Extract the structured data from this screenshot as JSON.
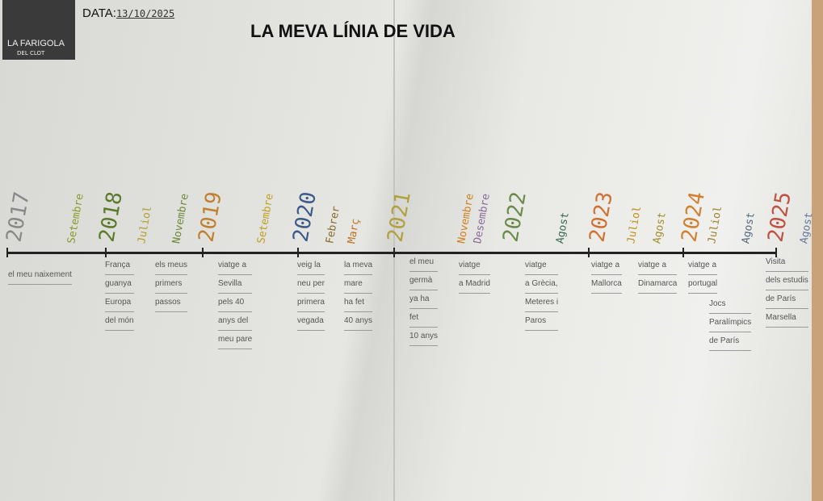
{
  "header": {
    "logo_text": "LA FARIGOLA",
    "logo_sub": "DEL CLOT",
    "date_label": "DATA:",
    "date_value": "13/10/2025",
    "title": "LA MEVA  LÍNIA DE VIDA"
  },
  "labels": [
    {
      "text": "2017",
      "kind": "yr",
      "color": "#888"
    },
    {
      "text": "Setembre",
      "kind": "mo",
      "color": "#8a9a2a"
    },
    {
      "text": "2018",
      "kind": "yr",
      "color": "#5a7a2a"
    },
    {
      "text": "Juliol",
      "kind": "mo",
      "color": "#b0a030"
    },
    {
      "text": "Novembre",
      "kind": "mo",
      "color": "#6a8a3a"
    },
    {
      "text": "2019",
      "kind": "yr",
      "color": "#c08030"
    },
    {
      "text": "Setembre",
      "kind": "mo",
      "color": "#c0a020"
    },
    {
      "text": "2020",
      "kind": "yr",
      "color": "#3a5a8a"
    },
    {
      "text": "Febrer",
      "kind": "mo",
      "color": "#8a6a2a"
    },
    {
      "text": "Març",
      "kind": "mo",
      "color": "#c07020"
    },
    {
      "text": "2021",
      "kind": "yr",
      "color": "#b0a040"
    },
    {
      "text": "Novembre",
      "kind": "mo",
      "color": "#d08020"
    },
    {
      "text": "Desembre",
      "kind": "mo",
      "color": "#8a6a9a"
    },
    {
      "text": "2022",
      "kind": "yr",
      "color": "#6a8a4a"
    },
    {
      "text": "Agost",
      "kind": "mo",
      "color": "#3a6a5a"
    },
    {
      "text": "2023",
      "kind": "yr",
      "color": "#d07030"
    },
    {
      "text": "Juliol",
      "kind": "mo",
      "color": "#c09020"
    },
    {
      "text": "Agost",
      "kind": "mo",
      "color": "#a09030"
    },
    {
      "text": "2024",
      "kind": "yr",
      "color": "#d08030"
    },
    {
      "text": "Juliol",
      "kind": "mo",
      "color": "#a08030"
    },
    {
      "text": "Agost",
      "kind": "mo",
      "color": "#5a6a7a"
    },
    {
      "text": "2025",
      "kind": "yr",
      "color": "#c05040"
    },
    {
      "text": "Agost",
      "kind": "mo",
      "color": "#6a7a9a"
    }
  ],
  "events": [
    [
      "el meu naixement"
    ],
    [
      "França",
      "guanya",
      "Europa",
      "del món"
    ],
    [
      "els meus",
      "primers",
      "passos"
    ],
    [
      "viatge a",
      "Sevilla",
      "pels 40",
      "anys del",
      "meu pare"
    ],
    [
      "veig la",
      "neu per",
      "primera",
      "vegada"
    ],
    [
      "la meva",
      "mare",
      "ha fet",
      "40 anys"
    ],
    [
      "el meu",
      "germà",
      "ya ha",
      "fet",
      "10 anys"
    ],
    [
      "viatge",
      "a Madrid"
    ],
    [
      "viatge",
      "a Grècia,",
      "Meteres i",
      "Paros"
    ],
    [
      "viatge a",
      "Mallorca"
    ],
    [
      "viatge a",
      "Dinamarca"
    ],
    [
      "viatge a",
      "portugal"
    ],
    [
      "Jocs",
      "Paralímpics",
      "de París"
    ],
    [
      "Visita",
      "dels estudis",
      "de París",
      "Marsella"
    ]
  ]
}
